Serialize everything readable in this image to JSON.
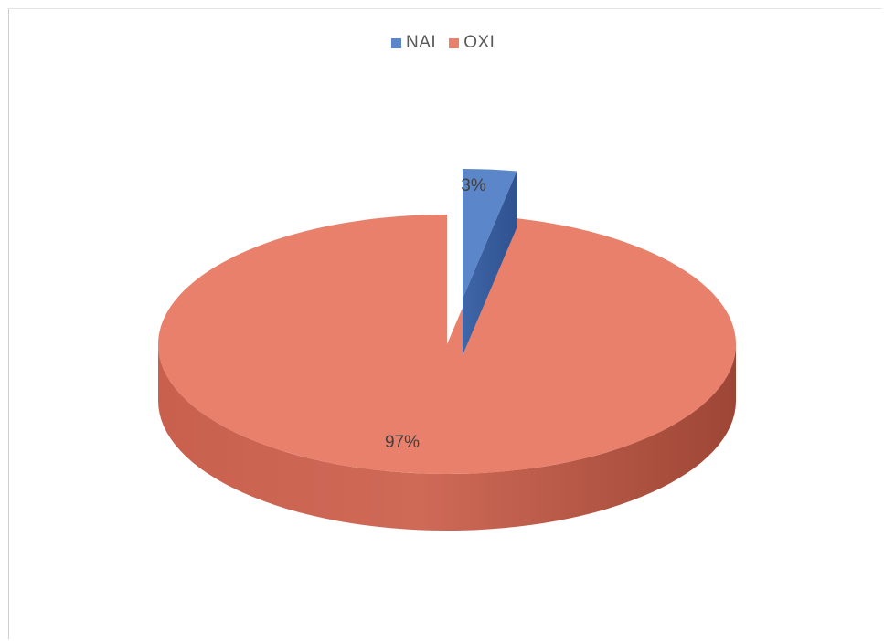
{
  "chart_data": {
    "type": "pie",
    "categories": [
      "NAI",
      "OXI"
    ],
    "values": [
      3,
      97
    ],
    "data_labels": [
      "3%",
      "97%"
    ],
    "colors": [
      "#5b86c9",
      "#e8806b"
    ],
    "legend": {
      "placement": "top",
      "entries": [
        "NAI",
        "OXI"
      ]
    },
    "style": "3d-exploded"
  }
}
